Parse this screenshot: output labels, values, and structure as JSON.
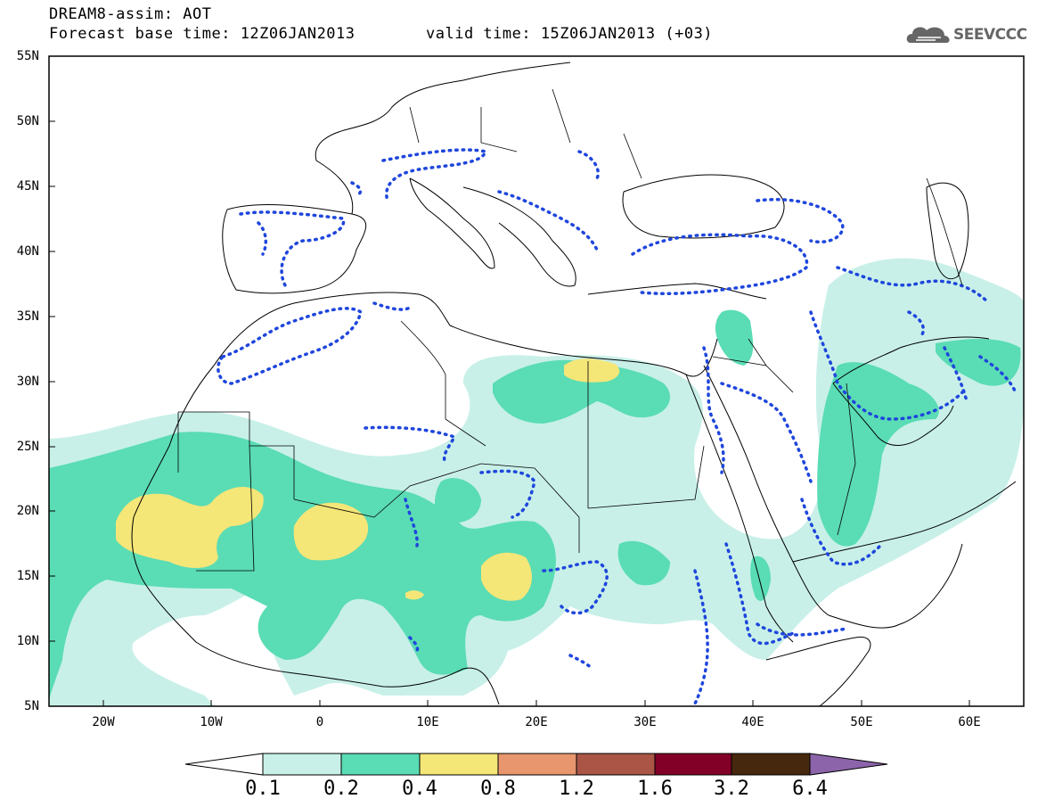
{
  "header": {
    "title_line1": "DREAM8-assim: AOT",
    "title_line2": "Forecast base time: 12Z06JAN2013",
    "valid_time": "valid time: 15Z06JAN2013 (+03)",
    "logo_text": "SEEVCCC"
  },
  "map": {
    "lat_labels": [
      "55N",
      "50N",
      "45N",
      "40N",
      "35N",
      "30N",
      "25N",
      "20N",
      "15N",
      "10N",
      "5N"
    ],
    "lon_labels": [
      "20W",
      "10W",
      "0",
      "10E",
      "20E",
      "30E",
      "40E",
      "50E",
      "60E"
    ],
    "lat_range": [
      5,
      55
    ],
    "lon_range": [
      -25,
      65
    ]
  },
  "colorbar": {
    "levels": [
      "0.1",
      "0.2",
      "0.4",
      "0.8",
      "1.2",
      "1.6",
      "3.2",
      "6.4"
    ],
    "colors": [
      "#ffffff",
      "#c8f0e8",
      "#5adcb4",
      "#f5e678",
      "#e8966e",
      "#aa5546",
      "#820028",
      "#46280f",
      "#8c64aa"
    ]
  }
}
